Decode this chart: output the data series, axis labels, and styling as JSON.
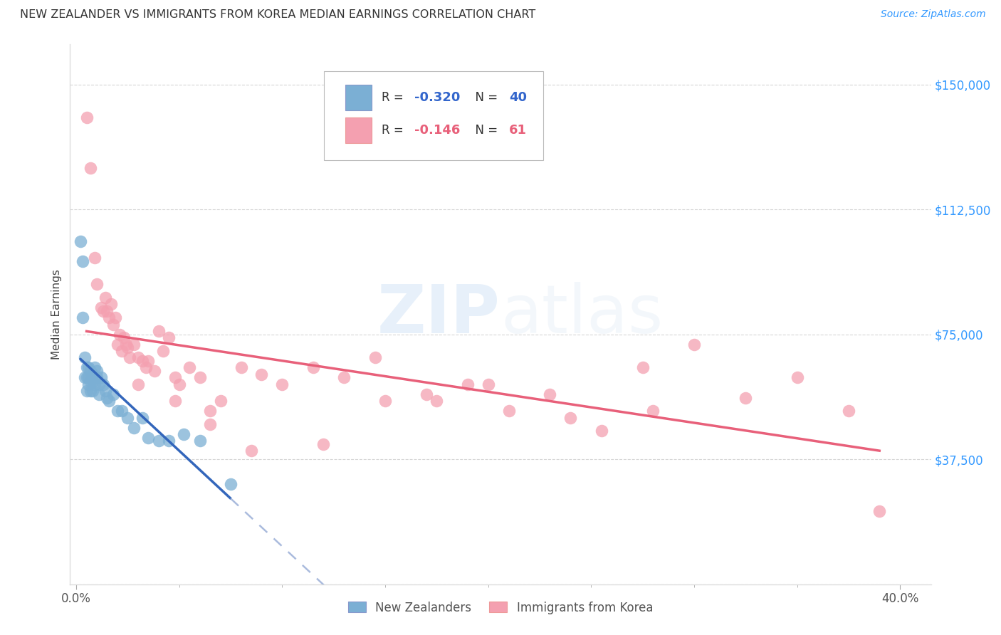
{
  "title": "NEW ZEALANDER VS IMMIGRANTS FROM KOREA MEDIAN EARNINGS CORRELATION CHART",
  "source": "Source: ZipAtlas.com",
  "ylabel": "Median Earnings",
  "yticks": [
    0,
    37500,
    75000,
    112500,
    150000
  ],
  "ytick_labels": [
    "",
    "$37,500",
    "$75,000",
    "$112,500",
    "$150,000"
  ],
  "xlim": [
    -0.003,
    0.415
  ],
  "ylim": [
    0,
    162000
  ],
  "nz_color": "#7BAFD4",
  "korea_color": "#F4A0B0",
  "nz_line_color": "#3366BB",
  "nz_line_ext_color": "#AABBDD",
  "korea_line_color": "#E8607A",
  "nz_scatter_x": [
    0.002,
    0.003,
    0.003,
    0.004,
    0.004,
    0.005,
    0.005,
    0.005,
    0.006,
    0.006,
    0.006,
    0.007,
    0.007,
    0.007,
    0.008,
    0.008,
    0.008,
    0.009,
    0.009,
    0.01,
    0.01,
    0.011,
    0.011,
    0.012,
    0.013,
    0.014,
    0.015,
    0.016,
    0.018,
    0.02,
    0.022,
    0.025,
    0.028,
    0.032,
    0.035,
    0.04,
    0.045,
    0.052,
    0.06,
    0.075
  ],
  "nz_scatter_y": [
    103000,
    97000,
    80000,
    68000,
    62000,
    65000,
    62000,
    58000,
    65000,
    62000,
    60000,
    64000,
    61000,
    58000,
    63000,
    61000,
    58000,
    65000,
    60000,
    64000,
    62000,
    60000,
    57000,
    62000,
    60000,
    58000,
    56000,
    55000,
    57000,
    52000,
    52000,
    50000,
    47000,
    50000,
    44000,
    43000,
    43000,
    45000,
    43000,
    30000
  ],
  "korea_scatter_x": [
    0.005,
    0.007,
    0.009,
    0.01,
    0.012,
    0.013,
    0.014,
    0.015,
    0.016,
    0.017,
    0.018,
    0.019,
    0.02,
    0.021,
    0.022,
    0.023,
    0.024,
    0.025,
    0.026,
    0.028,
    0.03,
    0.032,
    0.034,
    0.035,
    0.038,
    0.04,
    0.042,
    0.045,
    0.048,
    0.05,
    0.055,
    0.06,
    0.065,
    0.07,
    0.08,
    0.09,
    0.1,
    0.115,
    0.13,
    0.15,
    0.17,
    0.19,
    0.21,
    0.23,
    0.255,
    0.275,
    0.3,
    0.325,
    0.35,
    0.375,
    0.39,
    0.03,
    0.048,
    0.065,
    0.085,
    0.12,
    0.145,
    0.175,
    0.2,
    0.24,
    0.28
  ],
  "korea_scatter_y": [
    140000,
    125000,
    98000,
    90000,
    83000,
    82000,
    86000,
    82000,
    80000,
    84000,
    78000,
    80000,
    72000,
    75000,
    70000,
    74000,
    72000,
    71000,
    68000,
    72000,
    68000,
    67000,
    65000,
    67000,
    64000,
    76000,
    70000,
    74000,
    62000,
    60000,
    65000,
    62000,
    52000,
    55000,
    65000,
    63000,
    60000,
    65000,
    62000,
    55000,
    57000,
    60000,
    52000,
    57000,
    46000,
    65000,
    72000,
    56000,
    62000,
    52000,
    22000,
    60000,
    55000,
    48000,
    40000,
    42000,
    68000,
    55000,
    60000,
    50000,
    52000
  ],
  "nz_line_x_start": 0.002,
  "nz_line_x_solid_end": 0.075,
  "nz_line_x_dash_end": 0.4,
  "korea_line_x_start": 0.005,
  "korea_line_x_end": 0.39
}
